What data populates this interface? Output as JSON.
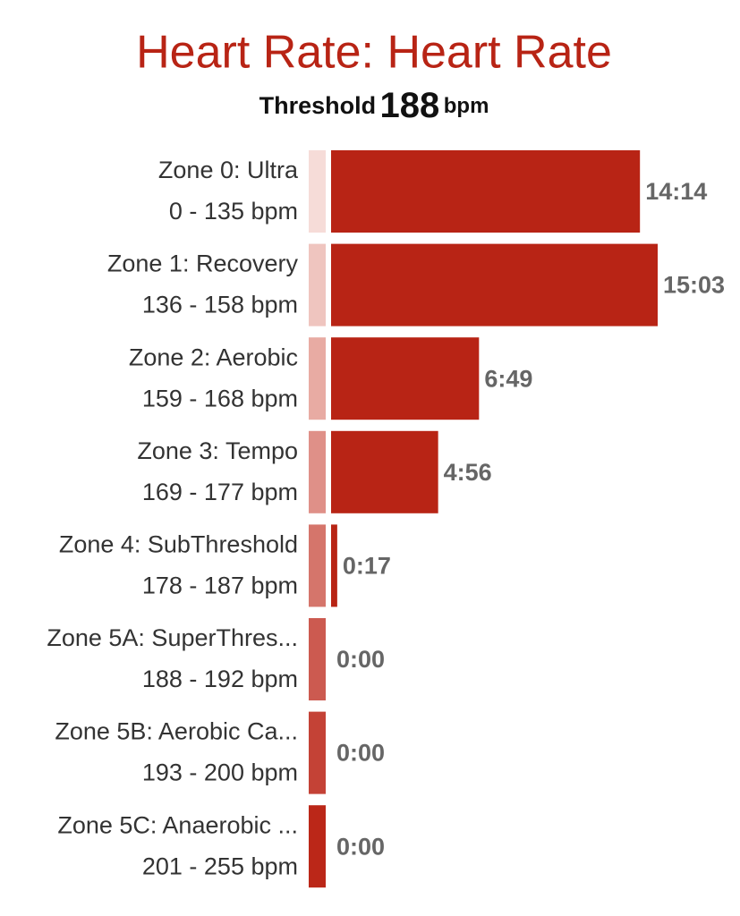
{
  "chart_data": {
    "type": "bar",
    "orientation": "horizontal",
    "title": "Heart Rate: Heart Rate",
    "threshold": {
      "label": "Threshold",
      "value": 188,
      "unit": "bpm"
    },
    "categories": [
      "Zone 0: Ultra",
      "Zone 1: Recovery",
      "Zone 2: Aerobic",
      "Zone 3: Tempo",
      "Zone 4: SubThreshold",
      "Zone 5A: SuperThres...",
      "Zone 5B: Aerobic Ca...",
      "Zone 5C: Anaerobic ..."
    ],
    "ranges": [
      "0 - 135 bpm",
      "136 - 158 bpm",
      "159 - 168 bpm",
      "169 - 177 bpm",
      "178 - 187 bpm",
      "188 - 192 bpm",
      "193 - 200 bpm",
      "201 - 255 bpm"
    ],
    "values": [
      854,
      903,
      409,
      296,
      17,
      0,
      0,
      0
    ],
    "value_labels": [
      "14:14",
      "15:03",
      "6:49",
      "4:56",
      "0:17",
      "0:00",
      "0:00",
      "0:00"
    ],
    "color": "#b82415",
    "zone_colors": [
      "#f6dcd8",
      "#efc5bf",
      "#e8aba3",
      "#df9088",
      "#d5756b",
      "#cc5a50",
      "#c44236",
      "#bb2718"
    ]
  }
}
